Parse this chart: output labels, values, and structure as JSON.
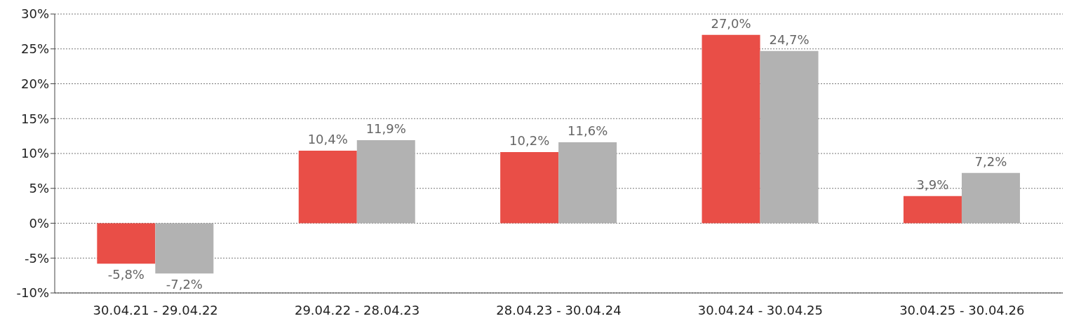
{
  "chart_data": {
    "type": "bar",
    "categories": [
      "30.04.21 - 29.04.22",
      "29.04.22 - 28.04.23",
      "28.04.23 - 30.04.24",
      "30.04.24 - 30.04.25",
      "30.04.25 - 30.04.26"
    ],
    "series": [
      {
        "color": "#e94e47",
        "values": [
          -5.8,
          10.4,
          10.2,
          27.0,
          3.9
        ],
        "value_labels": [
          "-5,8%",
          "10,4%",
          "10,2%",
          "27,0%",
          "3,9%"
        ]
      },
      {
        "color": "#b2b2b2",
        "values": [
          -7.2,
          11.9,
          11.6,
          24.7,
          7.2
        ],
        "value_labels": [
          "-7,2%",
          "11,9%",
          "11,6%",
          "24,7%",
          "7,2%"
        ]
      }
    ],
    "ylim": [
      -10,
      30
    ],
    "yticks": [
      {
        "value": -10,
        "label": "-10%"
      },
      {
        "value": -5,
        "label": "-5%"
      },
      {
        "value": 0,
        "label": "0%"
      },
      {
        "value": 5,
        "label": "5%"
      },
      {
        "value": 10,
        "label": "10%"
      },
      {
        "value": 15,
        "label": "15%"
      },
      {
        "value": 20,
        "label": "20%"
      },
      {
        "value": 25,
        "label": "25%"
      },
      {
        "value": 30,
        "label": "30%"
      }
    ],
    "grid": "y"
  }
}
